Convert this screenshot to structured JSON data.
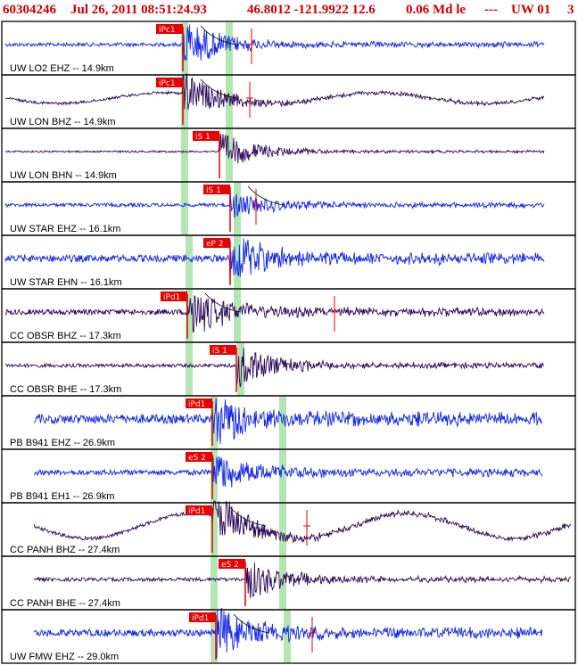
{
  "header": {
    "event_id": "60304246",
    "datetime": "Jul 26, 2011 08:51:24.93",
    "lat_lon_depth": "46.8012 -121.9922 12.6",
    "magnitude": "0.06 Md le",
    "separator": "---",
    "network_tag": "UW 01",
    "count": "3"
  },
  "colors": {
    "header_text": "#c80000",
    "trace_blue": "#1428e6",
    "trace_purple": "#2d0a5a",
    "pick_box": "#e60000",
    "pick_text": "#ffe0e0",
    "window_band": "#b4e6b4",
    "panel_border": "#000000"
  },
  "chart_data": {
    "type": "line",
    "title": "",
    "xlabel": "",
    "ylabel": "",
    "panels": [
      {
        "label": "UW LO2 EHZ -- 14.9km",
        "pick": "iPc1",
        "color": "blue",
        "start": 0.0,
        "arrival": 205,
        "amp": 26,
        "noise": 2,
        "swell": 0,
        "bands": [
          203,
          253
        ],
        "end_marker": 282,
        "curve": true
      },
      {
        "label": "UW LON BHZ -- 14.9km",
        "pick": "iPc1",
        "color": "purple",
        "start": 0.0,
        "arrival": 205,
        "amp": 22,
        "noise": 1.5,
        "swell": 6,
        "bands": [
          203,
          253
        ],
        "end_marker": 280,
        "curve": true
      },
      {
        "label": "UW LON BHN -- 14.9km",
        "pick": "iS 1",
        "color": "purple",
        "start": 0.0,
        "arrival": 246,
        "amp": 20,
        "noise": 1,
        "swell": 0,
        "bands": [
          203,
          253
        ],
        "end_marker": null,
        "curve": false
      },
      {
        "label": "UW STAR EHZ -- 16.1km",
        "pick": "iS 1",
        "color": "blue",
        "start": 0.0,
        "arrival": 258,
        "amp": 14,
        "noise": 2,
        "swell": 0,
        "bands": [
          203,
          262
        ],
        "end_marker": 287,
        "curve": true
      },
      {
        "label": "UW STAR EHN -- 16.1km",
        "pick": "eP 2",
        "color": "blue",
        "start": 0.0,
        "arrival": 258,
        "amp": 24,
        "noise": 4,
        "swell": 0,
        "bands": [
          208,
          262
        ],
        "end_marker": null,
        "curve": false
      },
      {
        "label": "CC OBSR BHZ -- 17.3km",
        "pick": "iPd1",
        "color": "purple",
        "start": 0.0,
        "arrival": 210,
        "amp": 26,
        "noise": 3,
        "swell": 0,
        "bands": [
          208,
          262
        ],
        "end_marker": 375,
        "curve": true
      },
      {
        "label": "CC OBSR BHE -- 17.3km",
        "pick": "iS 1",
        "color": "purple",
        "start": 0.0,
        "arrival": 265,
        "amp": 22,
        "noise": 2,
        "swell": 0,
        "bands": [
          208,
          266
        ],
        "end_marker": null,
        "curve": false
      },
      {
        "label": "PB B941 EHZ -- 26.9km",
        "pick": "iPd1",
        "color": "blue",
        "start": 0.05,
        "arrival": 238,
        "amp": 26,
        "noise": 5,
        "swell": 0,
        "bands": [
          236,
          313
        ],
        "end_marker": null,
        "curve": false
      },
      {
        "label": "PB B941 EH1 -- 26.9km",
        "pick": "eS 2",
        "color": "blue",
        "start": 0.05,
        "arrival": 238,
        "amp": 22,
        "noise": 3,
        "swell": 0,
        "bands": [
          236,
          313
        ],
        "end_marker": null,
        "curve": false
      },
      {
        "label": "CC PANH BHZ -- 27.4km",
        "pick": "iPd1",
        "color": "purple",
        "start": 0.05,
        "arrival": 238,
        "amp": 26,
        "noise": 2,
        "swell": 14,
        "bands": [
          236,
          313
        ],
        "end_marker": 344,
        "curve": true
      },
      {
        "label": "CC PANH BHE -- 27.4km",
        "pick": "eS 2",
        "color": "purple",
        "start": 0.05,
        "arrival": 275,
        "amp": 22,
        "noise": 2,
        "swell": 0,
        "bands": [
          236,
          313
        ],
        "end_marker": null,
        "curve": false
      },
      {
        "label": "UW FMW EHZ -- 29.0km",
        "pick": "iPd1",
        "color": "blue",
        "start": 0.05,
        "arrival": 242,
        "amp": 26,
        "noise": 4,
        "swell": 0,
        "bands": [
          236,
          318
        ],
        "end_marker": 350,
        "curve": true
      }
    ]
  }
}
